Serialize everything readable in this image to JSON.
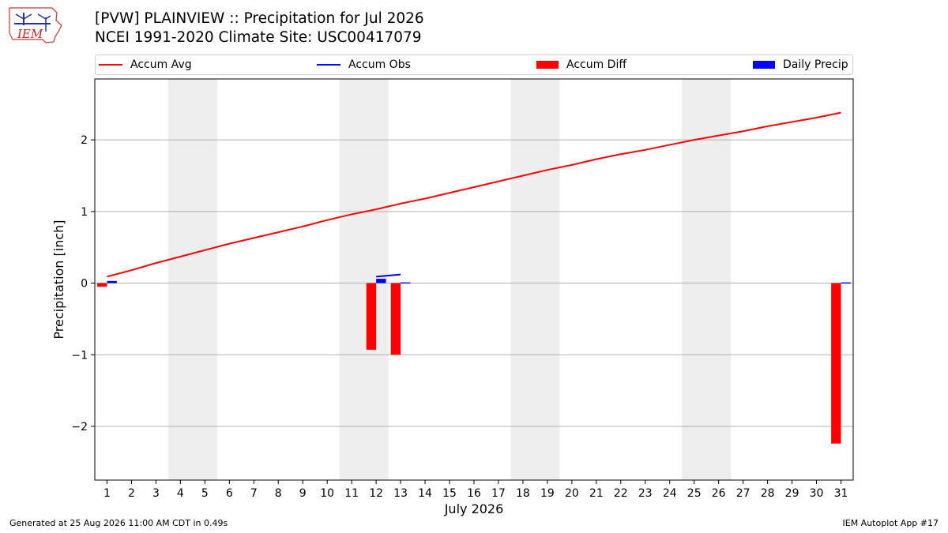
{
  "header": {
    "title_line1": "[PVW] PLAINVIEW :: Precipitation for Jul 2026",
    "title_line2": "NCEI 1991-2020 Climate Site: USC00417079",
    "logo_text": "IEM"
  },
  "legend": [
    {
      "label": "Accum Avg",
      "color": "#ff0000",
      "kind": "line"
    },
    {
      "label": "Accum Obs",
      "color": "#0000ff",
      "kind": "line"
    },
    {
      "label": "Accum Diff",
      "color": "#ff0000",
      "kind": "bar"
    },
    {
      "label": "Daily Precip",
      "color": "#0000ff",
      "kind": "bar"
    }
  ],
  "footer": {
    "left": "Generated at 25 Aug 2026 11:00 AM CDT in 0.49s",
    "right": "IEM Autoplot App #17"
  },
  "chart_data": {
    "type": "bar",
    "xlabel": "July 2026",
    "ylabel": "Precipitation [inch]",
    "xlim": [
      0.5,
      31.5
    ],
    "ylim": [
      -2.75,
      2.85
    ],
    "yticks": [
      -2,
      -1,
      0,
      1,
      2
    ],
    "ytick_labels": [
      "−2",
      "−1",
      "0",
      "1",
      "2"
    ],
    "days": [
      1,
      2,
      3,
      4,
      5,
      6,
      7,
      8,
      9,
      10,
      11,
      12,
      13,
      14,
      15,
      16,
      17,
      18,
      19,
      20,
      21,
      22,
      23,
      24,
      25,
      26,
      27,
      28,
      29,
      30,
      31
    ],
    "weekend_shading": [
      [
        4,
        5
      ],
      [
        11,
        12
      ],
      [
        18,
        19
      ],
      [
        25,
        26
      ]
    ],
    "grid": "y",
    "series": [
      {
        "name": "Accum Avg",
        "type": "line",
        "color": "#ff0000",
        "values": [
          0.09,
          0.18,
          0.28,
          0.37,
          0.46,
          0.55,
          0.63,
          0.71,
          0.79,
          0.88,
          0.96,
          1.03,
          1.11,
          1.18,
          1.26,
          1.34,
          1.42,
          1.5,
          1.58,
          1.65,
          1.73,
          1.8,
          1.86,
          1.93,
          2.0,
          2.06,
          2.12,
          2.19,
          2.25,
          2.31,
          2.38
        ]
      },
      {
        "name": "Accum Obs",
        "type": "line",
        "color": "#0000ff",
        "x": [
          12,
          13
        ],
        "values": [
          0.09,
          0.12
        ]
      },
      {
        "name": "Accum Diff",
        "type": "bar",
        "color": "#ff0000",
        "x": [
          1,
          12,
          13,
          31
        ],
        "values": [
          -0.05,
          -0.93,
          -1.0,
          -2.24
        ]
      },
      {
        "name": "Daily Precip",
        "type": "bar",
        "color": "#0000ff",
        "x": [
          1,
          12,
          13,
          31
        ],
        "values": [
          0.03,
          0.06,
          0.01,
          0.01
        ]
      }
    ]
  }
}
